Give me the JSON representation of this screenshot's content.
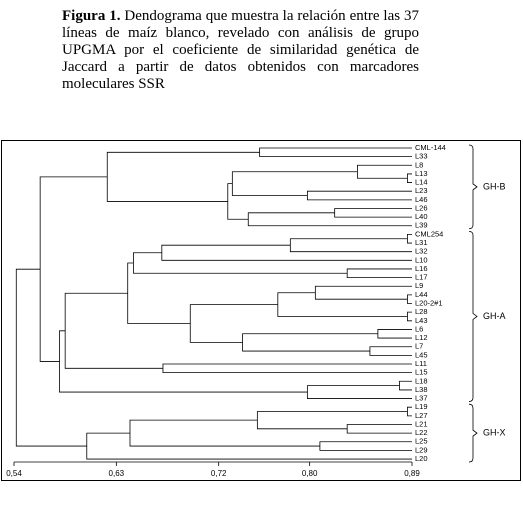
{
  "caption": {
    "label": "Figura 1.",
    "text": "Dendograma que muestra la relación entre las 37 líneas de maíz blanco, revelado con análisis de grupo UPGMA por el coeficiente de similaridad genética de Jaccard a partir de datos obtenidos con marcadores moleculares SSR"
  },
  "chart_data": {
    "type": "dendrogram",
    "leaves": [
      "CML-144",
      "L33",
      "L8",
      "L13",
      "L14",
      "L23",
      "L46",
      "L26",
      "L40",
      "L39",
      "CML254",
      "L31",
      "L32",
      "L10",
      "L16",
      "L17",
      "L9",
      "L44",
      "L20-2#1",
      "L28",
      "L43",
      "L6",
      "L12",
      "L7",
      "L45",
      "L11",
      "L15",
      "L18",
      "L38",
      "L37",
      "L19",
      "L27",
      "L21",
      "L22",
      "L25",
      "L29",
      "L20"
    ],
    "merges": [
      {
        "children": [
          0,
          1
        ],
        "height": 0.756
      },
      {
        "children": [
          3,
          4
        ],
        "height": 0.886
      },
      {
        "children": [
          2,
          38
        ],
        "height": 0.842
      },
      {
        "children": [
          5,
          6
        ],
        "height": 0.798
      },
      {
        "children": [
          39,
          40
        ],
        "height": 0.732
      },
      {
        "children": [
          7,
          8
        ],
        "height": 0.822
      },
      {
        "children": [
          42,
          9
        ],
        "height": 0.746
      },
      {
        "children": [
          41,
          43
        ],
        "height": 0.728
      },
      {
        "children": [
          37,
          44
        ],
        "height": 0.622
      },
      {
        "children": [
          10,
          11
        ],
        "height": 0.886
      },
      {
        "children": [
          46,
          12
        ],
        "height": 0.783
      },
      {
        "children": [
          47,
          13
        ],
        "height": 0.67
      },
      {
        "children": [
          14,
          15
        ],
        "height": 0.833
      },
      {
        "children": [
          48,
          49
        ],
        "height": 0.645
      },
      {
        "children": [
          17,
          18
        ],
        "height": 0.886
      },
      {
        "children": [
          16,
          51
        ],
        "height": 0.805
      },
      {
        "children": [
          19,
          20
        ],
        "height": 0.886
      },
      {
        "children": [
          52,
          53
        ],
        "height": 0.772
      },
      {
        "children": [
          21,
          22
        ],
        "height": 0.86
      },
      {
        "children": [
          23,
          24
        ],
        "height": 0.853
      },
      {
        "children": [
          55,
          56
        ],
        "height": 0.741
      },
      {
        "children": [
          54,
          57
        ],
        "height": 0.695
      },
      {
        "children": [
          50,
          58
        ],
        "height": 0.64
      },
      {
        "children": [
          25,
          26
        ],
        "height": 0.671
      },
      {
        "children": [
          59,
          60
        ],
        "height": 0.585
      },
      {
        "children": [
          27,
          28
        ],
        "height": 0.879
      },
      {
        "children": [
          62,
          29
        ],
        "height": 0.798
      },
      {
        "children": [
          61,
          63
        ],
        "height": 0.58
      },
      {
        "children": [
          45,
          64
        ],
        "height": 0.563
      },
      {
        "children": [
          30,
          31
        ],
        "height": 0.886
      },
      {
        "children": [
          32,
          33
        ],
        "height": 0.833
      },
      {
        "children": [
          66,
          67
        ],
        "height": 0.754
      },
      {
        "children": [
          34,
          35
        ],
        "height": 0.809
      },
      {
        "children": [
          68,
          69
        ],
        "height": 0.642
      },
      {
        "children": [
          70,
          36
        ],
        "height": 0.604
      },
      {
        "children": [
          65,
          71
        ],
        "height": 0.542
      }
    ],
    "groups": [
      {
        "label": "GH-B",
        "first": 0,
        "last": 9
      },
      {
        "label": "GH-A",
        "first": 10,
        "last": 29
      },
      {
        "label": "GH-X",
        "first": 30,
        "last": 36
      }
    ],
    "xlim": [
      0.54,
      0.89
    ],
    "xticks": [
      {
        "value": 0.54,
        "label": "0,54"
      },
      {
        "value": 0.63,
        "label": "0,63"
      },
      {
        "value": 0.72,
        "label": "0,72"
      },
      {
        "value": 0.8,
        "label": "0,80"
      },
      {
        "value": 0.89,
        "label": "0,89"
      }
    ],
    "color": "#000000"
  }
}
